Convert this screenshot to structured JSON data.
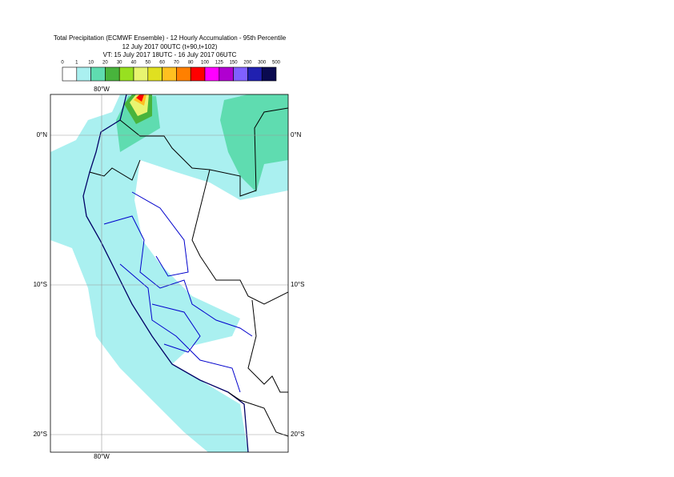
{
  "title": [
    "Total Precipitation (ECMWF Ensemble) - 12 Hourly Accumulation - 95th Percentile",
    "12 July 2017 00UTC (t+90,t+102)",
    "VT: 15 July 2017 18UTC - 16 July 2017 06UTC"
  ],
  "legend": {
    "thresholds": [
      0,
      1,
      10,
      20,
      30,
      40,
      50,
      60,
      70,
      80,
      100,
      125,
      150,
      200,
      300,
      500
    ],
    "colors": [
      "#ffffff",
      "#aaf0f0",
      "#5fdcb0",
      "#48b43c",
      "#98e020",
      "#e8f470",
      "#e0e020",
      "#ffc020",
      "#ff8000",
      "#ff0000",
      "#ff00ff",
      "#b000d0",
      "#8060ff",
      "#2020b0",
      "#0a0a50"
    ]
  },
  "map": {
    "lon_labels": [
      "80°W"
    ],
    "lat_labels": [
      "0°N",
      "10°S",
      "20°S"
    ]
  }
}
